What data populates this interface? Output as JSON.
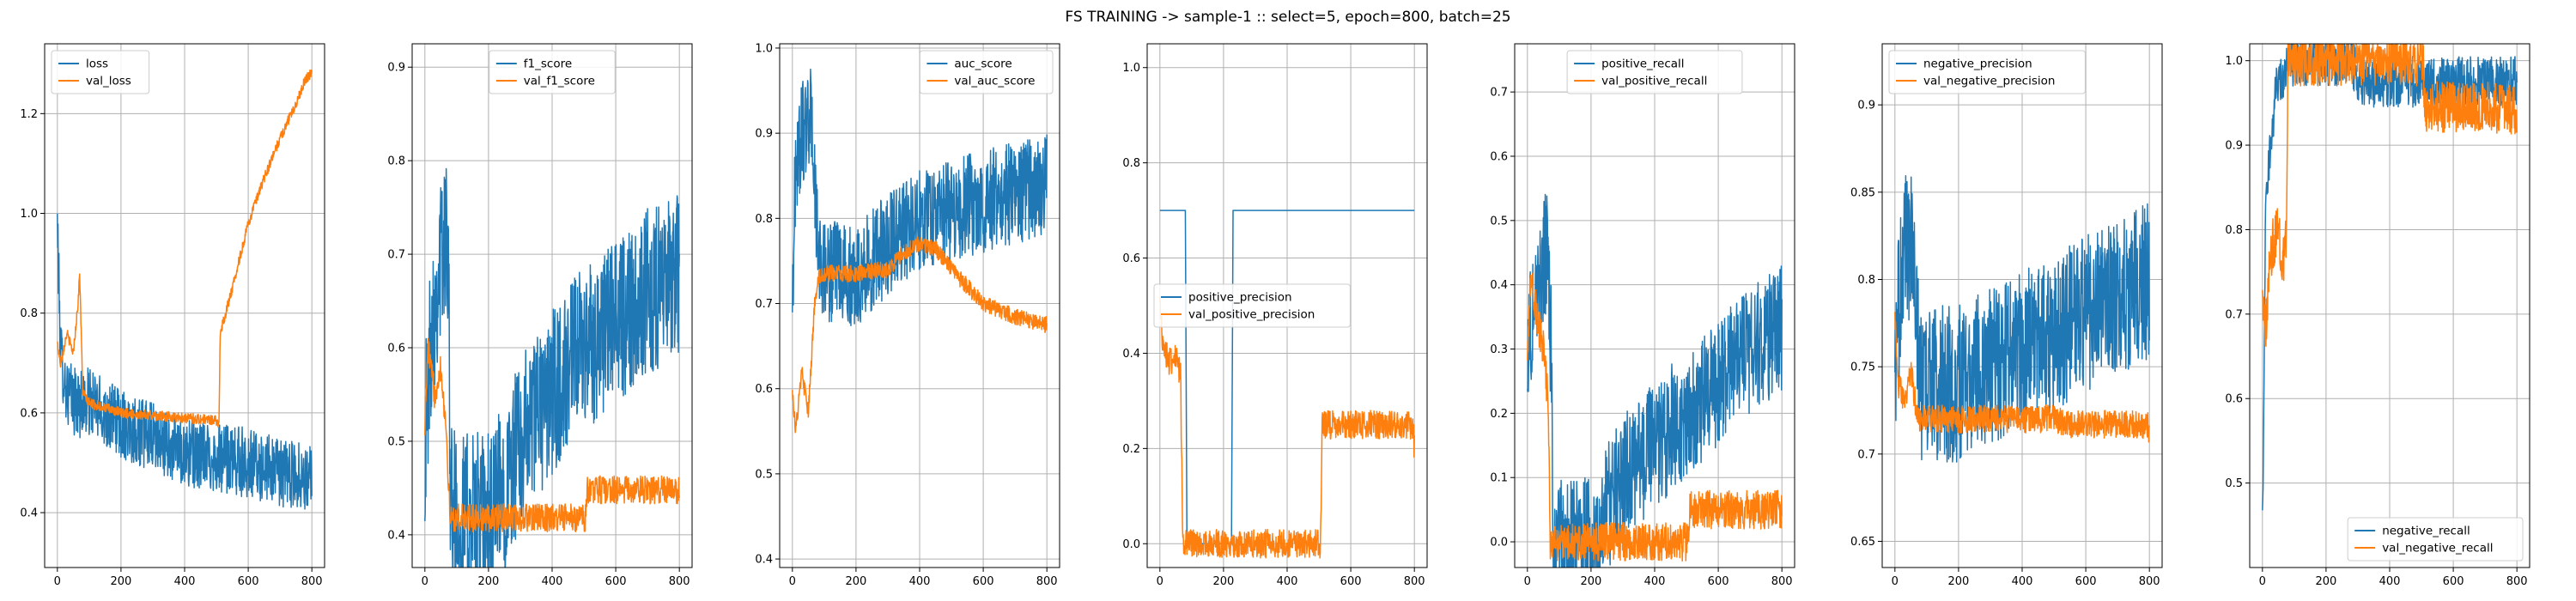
{
  "figure": {
    "title": "FS TRAINING -> sample-1 :: select=5, epoch=800, batch=25"
  },
  "colors": {
    "train": "#1f77b4",
    "val": "#ff7f0e",
    "grid": "#b0b0b0"
  },
  "chart_data": [
    {
      "type": "line",
      "title": "",
      "xlabel": "",
      "ylabel": "",
      "xlim": [
        -40,
        840
      ],
      "ylim": [
        0.29,
        1.34
      ],
      "xticks": [
        0,
        200,
        400,
        600,
        800
      ],
      "yticks": [
        0.4,
        0.6,
        0.8,
        1.0,
        1.2
      ],
      "grid": true,
      "legend": "upper-left",
      "series": [
        {
          "name": "loss",
          "color": "#1f77b4",
          "noise": 0.07,
          "x": [
            0,
            10,
            30,
            60,
            100,
            150,
            200,
            300,
            400,
            500,
            600,
            700,
            800
          ],
          "y": [
            0.98,
            0.72,
            0.64,
            0.62,
            0.62,
            0.6,
            0.58,
            0.55,
            0.52,
            0.51,
            0.5,
            0.48,
            0.47
          ]
        },
        {
          "name": "val_loss",
          "color": "#ff7f0e",
          "noise": 0.01,
          "x": [
            0,
            10,
            30,
            50,
            65,
            70,
            80,
            100,
            200,
            300,
            400,
            500,
            508,
            512,
            550,
            600,
            650,
            700,
            750,
            780,
            800
          ],
          "y": [
            0.74,
            0.7,
            0.76,
            0.72,
            0.82,
            0.88,
            0.64,
            0.62,
            0.6,
            0.595,
            0.59,
            0.585,
            0.58,
            0.76,
            0.85,
            0.98,
            1.07,
            1.15,
            1.22,
            1.27,
            1.28
          ]
        }
      ]
    },
    {
      "type": "line",
      "title": "",
      "xlabel": "",
      "ylabel": "",
      "xlim": [
        -40,
        840
      ],
      "ylim": [
        0.365,
        0.925
      ],
      "xticks": [
        0,
        200,
        400,
        600,
        800
      ],
      "yticks": [
        0.4,
        0.5,
        0.6,
        0.7,
        0.8,
        0.9
      ],
      "grid": true,
      "legend": "upper-center",
      "series": [
        {
          "name": "f1_score",
          "color": "#1f77b4",
          "noise": 0.09,
          "x": [
            0,
            20,
            50,
            75,
            80,
            100,
            200,
            250,
            300,
            400,
            500,
            600,
            700,
            800
          ],
          "y": [
            0.5,
            0.62,
            0.7,
            0.72,
            0.43,
            0.42,
            0.42,
            0.45,
            0.5,
            0.55,
            0.6,
            0.63,
            0.66,
            0.68
          ]
        },
        {
          "name": "val_f1_score",
          "color": "#ff7f0e",
          "noise": 0.015,
          "x": [
            0,
            10,
            30,
            50,
            70,
            75,
            80,
            200,
            300,
            400,
            505,
            510,
            600,
            700,
            800
          ],
          "y": [
            0.52,
            0.6,
            0.55,
            0.58,
            0.5,
            0.44,
            0.418,
            0.418,
            0.418,
            0.418,
            0.418,
            0.448,
            0.448,
            0.448,
            0.448
          ]
        }
      ]
    },
    {
      "type": "line",
      "title": "",
      "xlabel": "",
      "ylabel": "",
      "xlim": [
        -40,
        840
      ],
      "ylim": [
        0.39,
        1.005
      ],
      "xticks": [
        0,
        200,
        400,
        600,
        800
      ],
      "yticks": [
        0.4,
        0.5,
        0.6,
        0.7,
        0.8,
        0.9,
        1.0
      ],
      "grid": true,
      "legend": "upper-right",
      "series": [
        {
          "name": "auc_score",
          "color": "#1f77b4",
          "noise": 0.06,
          "x": [
            0,
            10,
            30,
            60,
            80,
            100,
            200,
            300,
            400,
            500,
            600,
            700,
            800
          ],
          "y": [
            0.7,
            0.86,
            0.9,
            0.92,
            0.76,
            0.74,
            0.73,
            0.77,
            0.8,
            0.81,
            0.82,
            0.83,
            0.84
          ]
        },
        {
          "name": "val_auc_score",
          "color": "#ff7f0e",
          "noise": 0.01,
          "x": [
            0,
            10,
            30,
            50,
            70,
            80,
            100,
            200,
            300,
            350,
            400,
            450,
            500,
            550,
            600,
            700,
            800
          ],
          "y": [
            0.6,
            0.55,
            0.62,
            0.57,
            0.7,
            0.73,
            0.735,
            0.735,
            0.74,
            0.76,
            0.77,
            0.765,
            0.74,
            0.72,
            0.7,
            0.685,
            0.675
          ]
        }
      ]
    },
    {
      "type": "line",
      "title": "",
      "xlabel": "",
      "ylabel": "",
      "xlim": [
        -40,
        840
      ],
      "ylim": [
        -0.05,
        1.05
      ],
      "xticks": [
        0,
        200,
        400,
        600,
        800
      ],
      "yticks": [
        0.0,
        0.2,
        0.4,
        0.6,
        0.8,
        1.0
      ],
      "grid": true,
      "legend": "center-left",
      "series": [
        {
          "name": "positive_precision",
          "color": "#1f77b4",
          "noise": 0.0,
          "x": [
            0,
            80,
            85,
            225,
            230,
            800
          ],
          "y": [
            0.7,
            0.7,
            0.0,
            0.0,
            0.7,
            0.7
          ]
        },
        {
          "name": "val_positive_precision",
          "color": "#ff7f0e",
          "noise": 0.03,
          "x": [
            0,
            10,
            30,
            50,
            65,
            72,
            80,
            200,
            300,
            400,
            505,
            510,
            600,
            700,
            795,
            800
          ],
          "y": [
            0.5,
            0.42,
            0.38,
            0.4,
            0.35,
            0.0,
            0.0,
            0.0,
            0.0,
            0.0,
            0.0,
            0.25,
            0.25,
            0.25,
            0.25,
            0.2
          ]
        }
      ]
    },
    {
      "type": "line",
      "title": "",
      "xlabel": "",
      "ylabel": "",
      "xlim": [
        -40,
        840
      ],
      "ylim": [
        -0.04,
        0.775
      ],
      "xticks": [
        0,
        200,
        400,
        600,
        800
      ],
      "yticks": [
        0.0,
        0.1,
        0.2,
        0.3,
        0.4,
        0.5,
        0.6,
        0.7
      ],
      "grid": true,
      "legend": "upper-center",
      "series": [
        {
          "name": "positive_recall",
          "color": "#1f77b4",
          "noise": 0.1,
          "x": [
            0,
            30,
            60,
            75,
            80,
            225,
            230,
            300,
            400,
            500,
            600,
            700,
            800
          ],
          "y": [
            0.3,
            0.4,
            0.45,
            0.3,
            0.0,
            0.0,
            0.03,
            0.1,
            0.15,
            0.2,
            0.25,
            0.3,
            0.33
          ]
        },
        {
          "name": "val_positive_recall",
          "color": "#ff7f0e",
          "noise": 0.03,
          "x": [
            0,
            10,
            30,
            50,
            65,
            72,
            80,
            300,
            505,
            510,
            600,
            700,
            800
          ],
          "y": [
            0.3,
            0.42,
            0.35,
            0.3,
            0.22,
            0.0,
            0.0,
            0.0,
            0.0,
            0.05,
            0.05,
            0.05,
            0.05
          ]
        }
      ]
    },
    {
      "type": "line",
      "title": "",
      "xlabel": "",
      "ylabel": "",
      "xlim": [
        -40,
        840
      ],
      "ylim": [
        0.635,
        0.935
      ],
      "xticks": [
        0,
        200,
        400,
        600,
        800
      ],
      "yticks": [
        0.65,
        0.7,
        0.75,
        0.8,
        0.85,
        0.9
      ],
      "grid": true,
      "legend": "upper-left",
      "series": [
        {
          "name": "negative_precision",
          "color": "#1f77b4",
          "noise": 0.045,
          "x": [
            0,
            10,
            30,
            60,
            80,
            100,
            200,
            300,
            400,
            500,
            600,
            700,
            800
          ],
          "y": [
            0.74,
            0.78,
            0.82,
            0.82,
            0.74,
            0.74,
            0.74,
            0.75,
            0.76,
            0.77,
            0.78,
            0.79,
            0.8
          ]
        },
        {
          "name": "val_negative_precision",
          "color": "#ff7f0e",
          "noise": 0.008,
          "x": [
            0,
            10,
            30,
            50,
            70,
            80,
            200,
            400,
            500,
            550,
            600,
            700,
            795,
            800
          ],
          "y": [
            0.78,
            0.74,
            0.73,
            0.75,
            0.72,
            0.72,
            0.72,
            0.72,
            0.72,
            0.717,
            0.717,
            0.717,
            0.717,
            0.712
          ]
        }
      ]
    },
    {
      "type": "line",
      "title": "",
      "xlabel": "",
      "ylabel": "",
      "xlim": [
        -40,
        840
      ],
      "ylim": [
        0.4,
        1.02
      ],
      "xticks": [
        0,
        200,
        400,
        600,
        800
      ],
      "yticks": [
        0.5,
        0.6,
        0.7,
        0.8,
        0.9,
        1.0
      ],
      "grid": true,
      "legend": "lower-right",
      "series": [
        {
          "name": "negative_recall",
          "color": "#1f77b4",
          "noise": 0.03,
          "x": [
            0,
            10,
            25,
            40,
            60,
            75,
            80,
            280,
            300,
            500,
            800
          ],
          "y": [
            0.44,
            0.82,
            0.9,
            0.96,
            0.98,
            0.99,
            1.0,
            1.0,
            0.975,
            0.975,
            0.975
          ]
        },
        {
          "name": "val_negative_recall",
          "color": "#ff7f0e",
          "noise": 0.03,
          "x": [
            0,
            10,
            20,
            30,
            50,
            65,
            75,
            80,
            300,
            505,
            510,
            600,
            700,
            800
          ],
          "y": [
            0.7,
            0.68,
            0.74,
            0.78,
            0.8,
            0.76,
            0.8,
            1.0,
            1.0,
            1.0,
            0.945,
            0.945,
            0.945,
            0.94
          ]
        }
      ]
    }
  ]
}
